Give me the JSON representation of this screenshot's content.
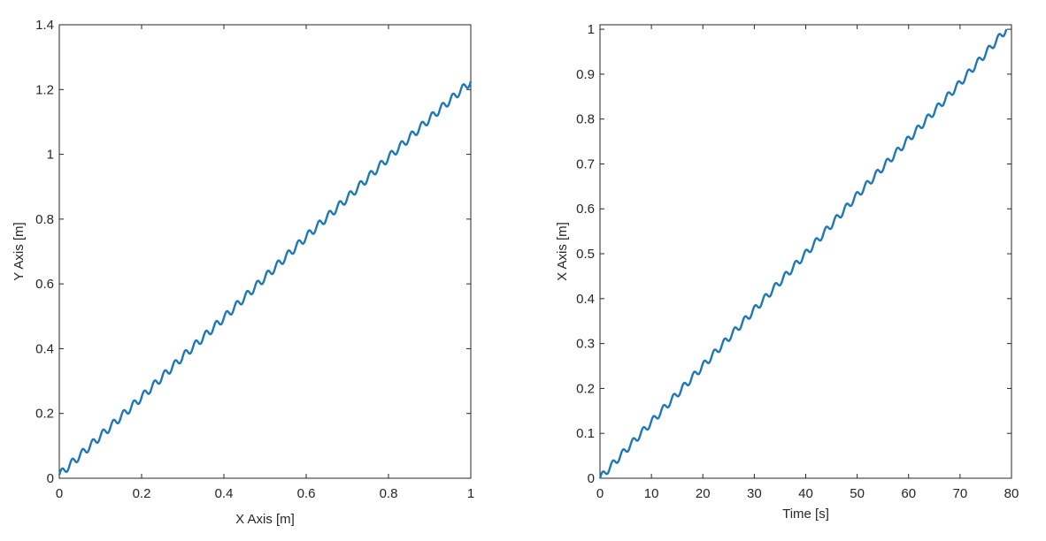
{
  "colors": {
    "line": "#1f78b4",
    "axes": "#262626",
    "background": "#ffffff"
  },
  "chart_data": [
    {
      "type": "line",
      "xlabel": "X Axis [m]",
      "ylabel": "Y Axis [m]",
      "xlim": [
        0,
        1
      ],
      "ylim": [
        0,
        1.4
      ],
      "xticks": [
        0,
        0.2,
        0.4,
        0.6,
        0.8,
        1
      ],
      "xtick_labels": [
        "0",
        "0.2",
        "0.4",
        "0.6",
        "0.8",
        "1"
      ],
      "yticks": [
        0,
        0.2,
        0.4,
        0.6,
        0.8,
        1,
        1.2,
        1.4
      ],
      "ytick_labels": [
        "0",
        "0.2",
        "0.4",
        "0.6",
        "0.8",
        "1",
        "1.2",
        "1.4"
      ],
      "grid": false,
      "box": true,
      "series": [
        {
          "x": [
            0,
            0.1,
            0.2,
            0.3,
            0.4,
            0.5,
            0.6,
            0.7,
            0.8,
            0.9,
            1.0
          ],
          "y": [
            0.01,
            0.13,
            0.25,
            0.375,
            0.495,
            0.62,
            0.745,
            0.865,
            0.99,
            1.11,
            1.225
          ],
          "ripple": {
            "cycles": 40,
            "amplitude": 0.012
          }
        }
      ]
    },
    {
      "type": "line",
      "xlabel": "Time [s]",
      "ylabel": "X Axis [m]",
      "xlim": [
        0,
        80
      ],
      "ylim": [
        0,
        1.01
      ],
      "xticks": [
        0,
        10,
        20,
        30,
        40,
        50,
        60,
        70,
        80
      ],
      "xtick_labels": [
        "0",
        "10",
        "20",
        "30",
        "40",
        "50",
        "60",
        "70",
        "80"
      ],
      "yticks": [
        0,
        0.1,
        0.2,
        0.3,
        0.4,
        0.5,
        0.6,
        0.7,
        0.8,
        0.9,
        1
      ],
      "ytick_labels": [
        "0",
        "0.1",
        "0.2",
        "0.3",
        "0.4",
        "0.5",
        "0.6",
        "0.7",
        "0.8",
        "0.9",
        "1"
      ],
      "grid": false,
      "box": true,
      "series": [
        {
          "x": [
            0,
            10,
            20,
            30,
            40,
            50,
            60,
            70,
            79
          ],
          "y": [
            0,
            0.125,
            0.25,
            0.375,
            0.5,
            0.63,
            0.755,
            0.88,
            1.0
          ],
          "ripple": {
            "cycles": 40,
            "amplitude": 0.008
          }
        }
      ]
    }
  ]
}
